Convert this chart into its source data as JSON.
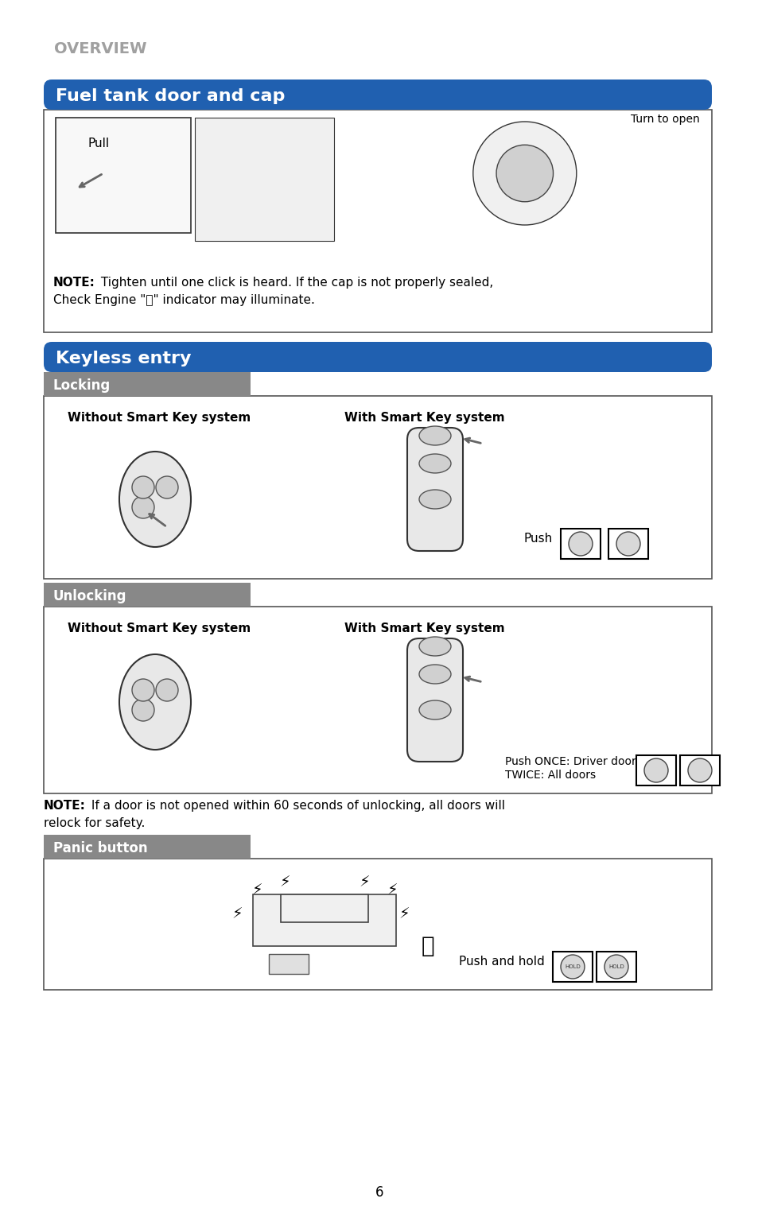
{
  "page_title": "OVERVIEW",
  "page_number": "6",
  "bg_color": "#ffffff",
  "section1_title": "Fuel tank door and cap",
  "section1_header_bg": "#2060b0",
  "section1_header_text": "#ffffff",
  "section1_note": "NOTE: Tighten until one click is heard. If the cap is not properly sealed,\nCheck Engine \"Ⓜ\" indicator may illuminate.",
  "section1_note2": "NOTE: Tighten until one click is heard. If the cap is not properly sealed,",
  "section1_note3": "Check Engine \"⭘\" indicator may illuminate.",
  "section1_img_label1": "Pull",
  "section1_img_label2": "Turn to open",
  "section2_title": "Keyless entry",
  "section2_header_bg": "#2060b0",
  "section2_header_text": "#ffffff",
  "sub1_title": "Locking",
  "sub1_bg": "#888888",
  "sub1_text": "#ffffff",
  "sub1_label1": "Without Smart Key system",
  "sub1_label2": "With Smart Key system",
  "sub1_push": "Push",
  "sub2_title": "Unlocking",
  "sub2_bg": "#888888",
  "sub2_text": "#ffffff",
  "sub2_label1": "Without Smart Key system",
  "sub2_label2": "With Smart Key system",
  "sub2_push": "Push ONCE: Driver door\nTWICE: All doors",
  "section2_note": "NOTE: If a door is not opened within 60 seconds of unlocking, all doors will\nrelock for safety.",
  "sub3_title": "Panic button",
  "sub3_bg": "#888888",
  "sub3_text": "#ffffff",
  "sub3_push": "Push and hold",
  "box_border": "#000000",
  "box_bg": "#ffffff",
  "gray_light": "#d0d0d0",
  "gray_mid": "#aaaaaa"
}
